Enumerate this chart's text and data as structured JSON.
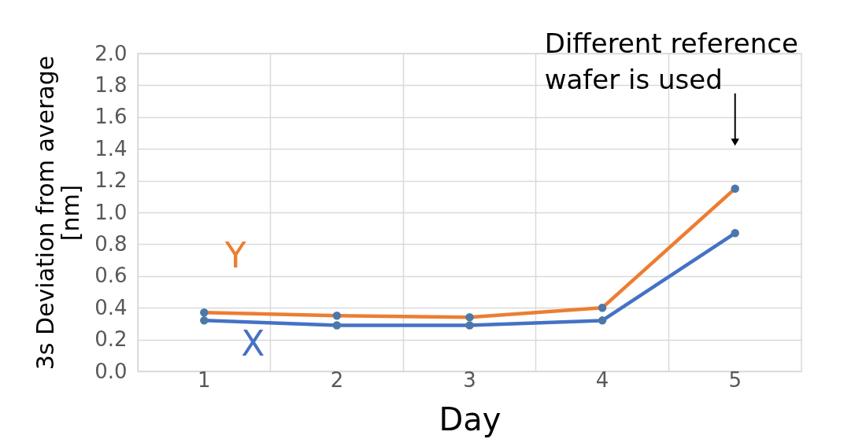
{
  "chart_data": {
    "type": "line",
    "xlabel": "Day",
    "ylabel": "3s Deviation from average [nm]",
    "categories": [
      "1",
      "2",
      "3",
      "4",
      "5"
    ],
    "series": [
      {
        "name": "X",
        "color": "#4472c4",
        "values": [
          0.32,
          0.29,
          0.29,
          0.32,
          0.87
        ]
      },
      {
        "name": "Y",
        "color": "#ed7d31",
        "values": [
          0.37,
          0.35,
          0.34,
          0.4,
          1.15
        ]
      }
    ],
    "ylim": [
      0,
      2.0
    ],
    "yticks": [
      {
        "value": 0,
        "label": "0.0"
      },
      {
        "value": 0.2,
        "label": "0.2"
      },
      {
        "value": 0.4,
        "label": "0.4"
      },
      {
        "value": 0.6,
        "label": "0.6"
      },
      {
        "value": 0.8,
        "label": "0.8"
      },
      {
        "value": 1.0,
        "label": "1.0"
      },
      {
        "value": 1.2,
        "label": "1.2"
      },
      {
        "value": 1.4,
        "label": "1.4"
      },
      {
        "value": 1.6,
        "label": "1.6"
      },
      {
        "value": 1.8,
        "label": "1.8"
      },
      {
        "value": 2.0,
        "label": "2.0"
      }
    ],
    "annotations": [
      "Different reference wafer is used"
    ],
    "grid": true,
    "marker": "circle",
    "line_style": "solid"
  }
}
